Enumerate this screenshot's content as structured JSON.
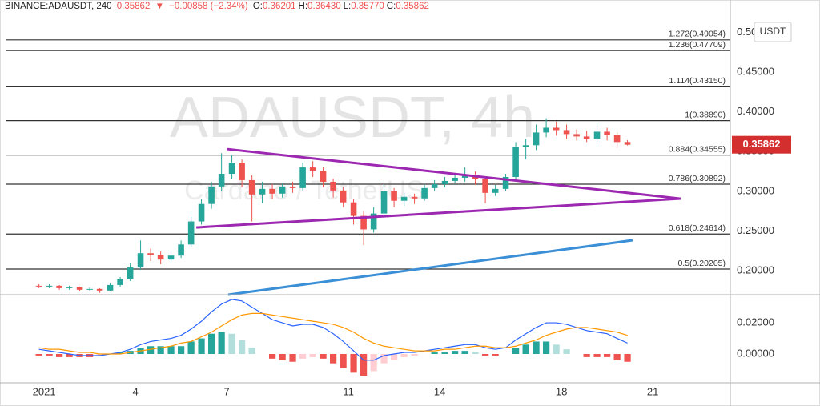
{
  "header": {
    "symbol": "BINANCE:ADAUSDT, 240",
    "price": "0.35862",
    "change": "−0.00858 (−2.34%)",
    "fields": [
      {
        "key": "O:",
        "value": "0.36201"
      },
      {
        "key": "H:",
        "value": "0.36430"
      },
      {
        "key": "L:",
        "value": "0.35770"
      },
      {
        "key": "C:",
        "value": "0.35862"
      }
    ]
  },
  "chart_data": [
    {
      "type": "candlestick",
      "watermark": "ADAUSDT, 4h",
      "watermark_subtitle": "Cardano / TetherUS",
      "currency": "USDT",
      "up_color": "#26a69a",
      "down_color": "#ef5350",
      "xlim": [
        -0.45,
        23.55
      ],
      "ylim": [
        0.1698,
        0.5206
      ],
      "yticks": [
        {
          "value": 0.2,
          "label": "0.20000"
        },
        {
          "value": 0.25,
          "label": "0.25000"
        },
        {
          "value": 0.3,
          "label": "0.30000"
        },
        {
          "value": 0.35,
          "label": "0.35000"
        },
        {
          "value": 0.4,
          "label": "0.40000"
        },
        {
          "value": 0.45,
          "label": "0.45000"
        },
        {
          "value": 0.5,
          "label": "0.50000"
        }
      ],
      "x": [
        0.83,
        1.17,
        1.5,
        1.83,
        2.17,
        2.5,
        2.83,
        3.17,
        3.5,
        3.83,
        4.17,
        4.5,
        4.83,
        5.17,
        5.5,
        5.83,
        6.17,
        6.5,
        6.83,
        7.17,
        7.5,
        7.83,
        8.17,
        8.5,
        8.83,
        9.17,
        9.5,
        9.83,
        10.17,
        10.5,
        10.83,
        11.17,
        11.5,
        11.83,
        12.17,
        12.5,
        12.83,
        13.17,
        13.5,
        13.83,
        14.17,
        14.5,
        14.83,
        15.17,
        15.5,
        15.83,
        16.17,
        16.5,
        16.83,
        17.17,
        17.5,
        17.83,
        18.17,
        18.5,
        18.83,
        19.17,
        19.5,
        19.83,
        20.17
      ],
      "open": [
        0.181,
        0.18,
        0.181,
        0.178,
        0.179,
        0.176,
        0.177,
        0.175,
        0.182,
        0.189,
        0.204,
        0.222,
        0.22,
        0.214,
        0.219,
        0.233,
        0.262,
        0.284,
        0.306,
        0.322,
        0.336,
        0.314,
        0.296,
        0.303,
        0.297,
        0.306,
        0.304,
        0.33,
        0.326,
        0.312,
        0.301,
        0.286,
        0.269,
        0.252,
        0.272,
        0.3,
        0.288,
        0.293,
        0.291,
        0.304,
        0.309,
        0.313,
        0.317,
        0.321,
        0.315,
        0.298,
        0.303,
        0.318,
        0.356,
        0.358,
        0.374,
        0.38,
        0.377,
        0.372,
        0.369,
        0.366,
        0.375,
        0.371,
        0.36201
      ],
      "high": [
        0.183,
        0.183,
        0.182,
        0.181,
        0.18,
        0.179,
        0.178,
        0.184,
        0.192,
        0.21,
        0.238,
        0.228,
        0.224,
        0.225,
        0.238,
        0.268,
        0.29,
        0.312,
        0.348,
        0.346,
        0.34,
        0.32,
        0.312,
        0.309,
        0.31,
        0.312,
        0.336,
        0.338,
        0.33,
        0.316,
        0.305,
        0.29,
        0.275,
        0.28,
        0.308,
        0.304,
        0.298,
        0.297,
        0.308,
        0.314,
        0.318,
        0.322,
        0.33,
        0.325,
        0.318,
        0.308,
        0.322,
        0.362,
        0.366,
        0.384,
        0.392,
        0.388,
        0.384,
        0.378,
        0.376,
        0.386,
        0.38,
        0.374,
        0.3643
      ],
      "low": [
        0.178,
        0.178,
        0.176,
        0.176,
        0.174,
        0.174,
        0.172,
        0.174,
        0.18,
        0.187,
        0.201,
        0.212,
        0.208,
        0.211,
        0.216,
        0.23,
        0.258,
        0.278,
        0.3,
        0.315,
        0.305,
        0.262,
        0.285,
        0.29,
        0.292,
        0.298,
        0.3,
        0.318,
        0.305,
        0.292,
        0.28,
        0.258,
        0.232,
        0.248,
        0.268,
        0.28,
        0.282,
        0.284,
        0.288,
        0.3,
        0.305,
        0.31,
        0.312,
        0.308,
        0.285,
        0.294,
        0.3,
        0.316,
        0.34,
        0.352,
        0.368,
        0.37,
        0.366,
        0.364,
        0.362,
        0.362,
        0.364,
        0.355,
        0.3577
      ],
      "close": [
        0.18,
        0.181,
        0.178,
        0.179,
        0.176,
        0.177,
        0.175,
        0.182,
        0.189,
        0.204,
        0.222,
        0.22,
        0.214,
        0.219,
        0.233,
        0.262,
        0.284,
        0.306,
        0.322,
        0.336,
        0.314,
        0.296,
        0.303,
        0.297,
        0.306,
        0.304,
        0.33,
        0.326,
        0.312,
        0.301,
        0.286,
        0.269,
        0.252,
        0.272,
        0.3,
        0.288,
        0.293,
        0.291,
        0.304,
        0.309,
        0.313,
        0.317,
        0.321,
        0.315,
        0.298,
        0.303,
        0.318,
        0.356,
        0.358,
        0.374,
        0.38,
        0.377,
        0.372,
        0.369,
        0.366,
        0.375,
        0.371,
        0.36201,
        0.35862
      ],
      "fib_levels": [
        {
          "label": "1.272(0.49054)",
          "value": 0.49054
        },
        {
          "label": "1.236(0.47709)",
          "value": 0.47709
        },
        {
          "label": "1.114(0.43150)",
          "value": 0.4315
        },
        {
          "label": "1(0.38890)",
          "value": 0.3889
        },
        {
          "label": "0.884(0.34555)",
          "value": 0.34555
        },
        {
          "label": "0.786(0.30892)",
          "value": 0.30892
        },
        {
          "label": "0.618(0.24614)",
          "value": 0.24614
        },
        {
          "label": "0.5(0.20205)",
          "value": 0.20205
        }
      ],
      "trendlines": [
        {
          "color": "#3a8fd6",
          "points": [
            [
              7.05,
              0.1698
            ],
            [
              20.34,
              0.2383
            ]
          ]
        },
        {
          "color": "#9c27b0",
          "points": [
            [
              7.0,
              0.3532
            ],
            [
              21.92,
              0.2907
            ]
          ]
        },
        {
          "color": "#9c27b0",
          "points": [
            [
              6.0,
              0.2544
            ],
            [
              21.92,
              0.2907
            ]
          ]
        }
      ]
    },
    {
      "type": "macd",
      "xlim": [
        -0.45,
        23.55
      ],
      "ylim": [
        -0.0185,
        0.037
      ],
      "yticks": [
        {
          "value": 0,
          "label": "0.00000"
        },
        {
          "value": 0.02,
          "label": "0.02000"
        }
      ],
      "xticks": [
        {
          "value": 1,
          "label": "2021"
        },
        4,
        7,
        11,
        14,
        18,
        21
      ],
      "histogram_colors": {
        "rising_positive": "#26a69a",
        "falling_positive": "#b2dfdb",
        "falling_negative": "#ef5350",
        "rising_negative": "#ffcdd2"
      },
      "x": [
        0.83,
        1.17,
        1.5,
        1.83,
        2.17,
        2.5,
        2.83,
        3.17,
        3.5,
        3.83,
        4.17,
        4.5,
        4.83,
        5.17,
        5.5,
        5.83,
        6.17,
        6.5,
        6.83,
        7.17,
        7.5,
        7.83,
        8.17,
        8.5,
        8.83,
        9.17,
        9.5,
        9.83,
        10.17,
        10.5,
        10.83,
        11.17,
        11.5,
        11.83,
        12.17,
        12.5,
        12.83,
        13.17,
        13.5,
        13.83,
        14.17,
        14.5,
        14.83,
        15.17,
        15.5,
        15.83,
        16.17,
        16.5,
        16.83,
        17.17,
        17.5,
        17.83,
        18.17,
        18.5,
        18.83,
        19.17,
        19.5,
        19.83,
        20.17
      ],
      "histogram": [
        -0.001,
        -0.001,
        -0.002,
        -0.002,
        -0.002,
        -0.002,
        -0.001,
        0,
        0.001,
        0.002,
        0.004,
        0.005,
        0.005,
        0.005,
        0.005,
        0.008,
        0.01,
        0.013,
        0.014,
        0.013,
        0.009,
        0.004,
        0,
        -0.003,
        -0.004,
        -0.005,
        -0.003,
        -0.002,
        -0.003,
        -0.006,
        -0.009,
        -0.012,
        -0.014,
        -0.011,
        -0.006,
        -0.004,
        -0.002,
        -0.001,
        0,
        0.001,
        0.001,
        0.002,
        0.002,
        0.001,
        -0.001,
        -0.001,
        0,
        0.004,
        0.006,
        0.008,
        0.008,
        0.006,
        0.003,
        0,
        -0.002,
        -0.002,
        -0.002,
        -0.004,
        -0.005
      ],
      "series": [
        {
          "color": "#2962ff",
          "values": [
            0.003,
            0.002,
            0.001,
            0,
            -0.001,
            -0.001,
            -0.001,
            0,
            0.001,
            0.003,
            0.006,
            0.008,
            0.009,
            0.01,
            0.012,
            0.016,
            0.021,
            0.027,
            0.032,
            0.035,
            0.034,
            0.03,
            0.026,
            0.022,
            0.02,
            0.018,
            0.019,
            0.019,
            0.017,
            0.013,
            0.008,
            0.002,
            -0.004,
            -0.004,
            -0.001,
            0,
            0.001,
            0.001,
            0.002,
            0.003,
            0.004,
            0.005,
            0.006,
            0.006,
            0.004,
            0.003,
            0.004,
            0.009,
            0.013,
            0.017,
            0.02,
            0.02,
            0.019,
            0.017,
            0.015,
            0.014,
            0.013,
            0.01,
            0.007
          ]
        },
        {
          "color": "#ff9800",
          "values": [
            0.004,
            0.003,
            0.003,
            0.002,
            0.001,
            0.001,
            0,
            0,
            0,
            0.001,
            0.002,
            0.003,
            0.004,
            0.005,
            0.007,
            0.008,
            0.011,
            0.014,
            0.018,
            0.022,
            0.025,
            0.026,
            0.026,
            0.025,
            0.024,
            0.023,
            0.022,
            0.021,
            0.02,
            0.019,
            0.017,
            0.014,
            0.01,
            0.007,
            0.005,
            0.004,
            0.003,
            0.002,
            0.002,
            0.002,
            0.003,
            0.003,
            0.004,
            0.005,
            0.005,
            0.004,
            0.004,
            0.005,
            0.007,
            0.009,
            0.012,
            0.014,
            0.016,
            0.017,
            0.017,
            0.016,
            0.015,
            0.014,
            0.012
          ]
        }
      ]
    }
  ]
}
